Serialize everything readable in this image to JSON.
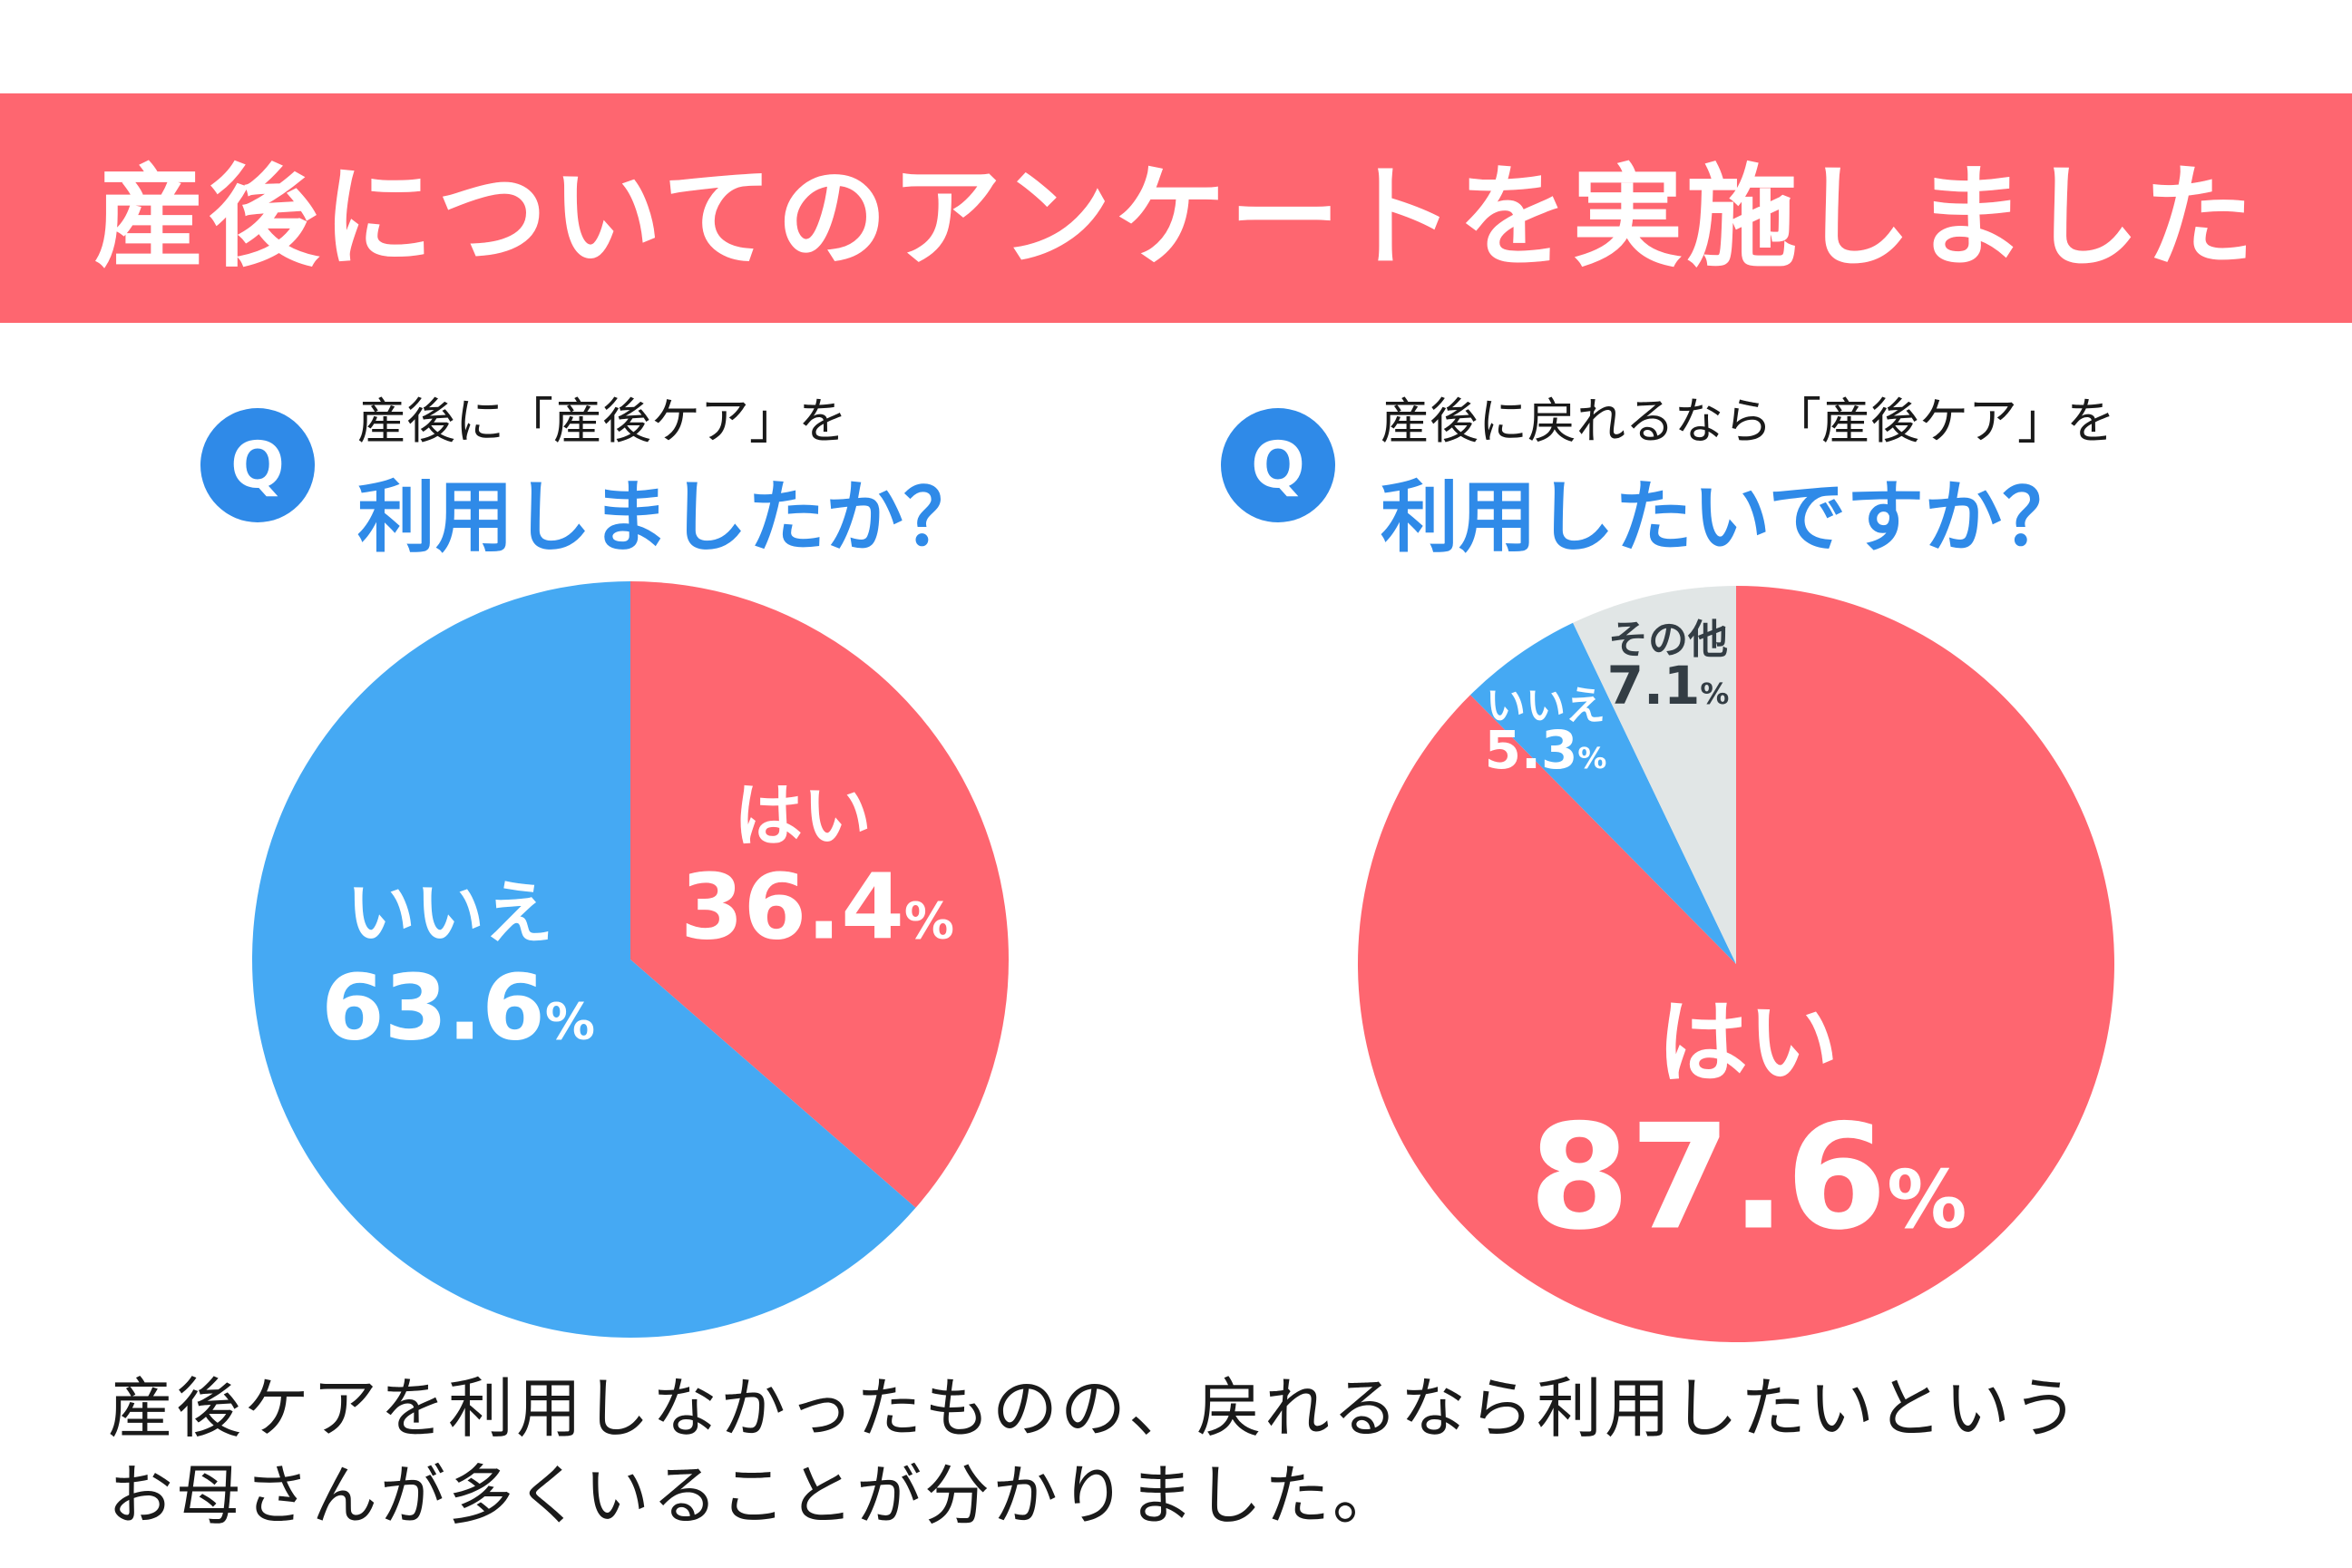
{
  "title": "産後についてのアンケートを実施しました",
  "colors": {
    "banner": "#fe6670",
    "yes": "#fe6670",
    "no": "#45a9f3",
    "other": "#e1e6e6",
    "accent": "#2f8ae8"
  },
  "questions": [
    {
      "badge": "Q",
      "line1": "産後に「産後ケア」を",
      "line2": "利用しましたか？"
    },
    {
      "badge": "Q",
      "line1": "産後に戻れるなら「産後ケア」を",
      "line2": "利用したいですか？"
    }
  ],
  "chart_data": [
    {
      "type": "pie",
      "title": "産後に「産後ケア」を利用しましたか？",
      "slices": [
        {
          "label": "はい",
          "value": 36.4,
          "display": "36.4"
        },
        {
          "label": "いいえ",
          "value": 63.6,
          "display": "63.6"
        }
      ],
      "unit": "%",
      "start": "top",
      "direction": "clockwise"
    },
    {
      "type": "pie",
      "title": "産後に戻れるなら「産後ケア」を利用したいですか？",
      "slices": [
        {
          "label": "はい",
          "value": 87.6,
          "display": "87.6"
        },
        {
          "label": "いいえ",
          "value": 5.3,
          "display": "5.3"
        },
        {
          "label": "その他",
          "value": 7.1,
          "display": "7.1"
        }
      ],
      "unit": "%",
      "start": "top",
      "direction": "clockwise"
    }
  ],
  "summary": {
    "line1": "産後ケアを利用しなかったものの、戻れるなら利用したいという",
    "line2": "お母さんが多くいることが分かりました。"
  }
}
